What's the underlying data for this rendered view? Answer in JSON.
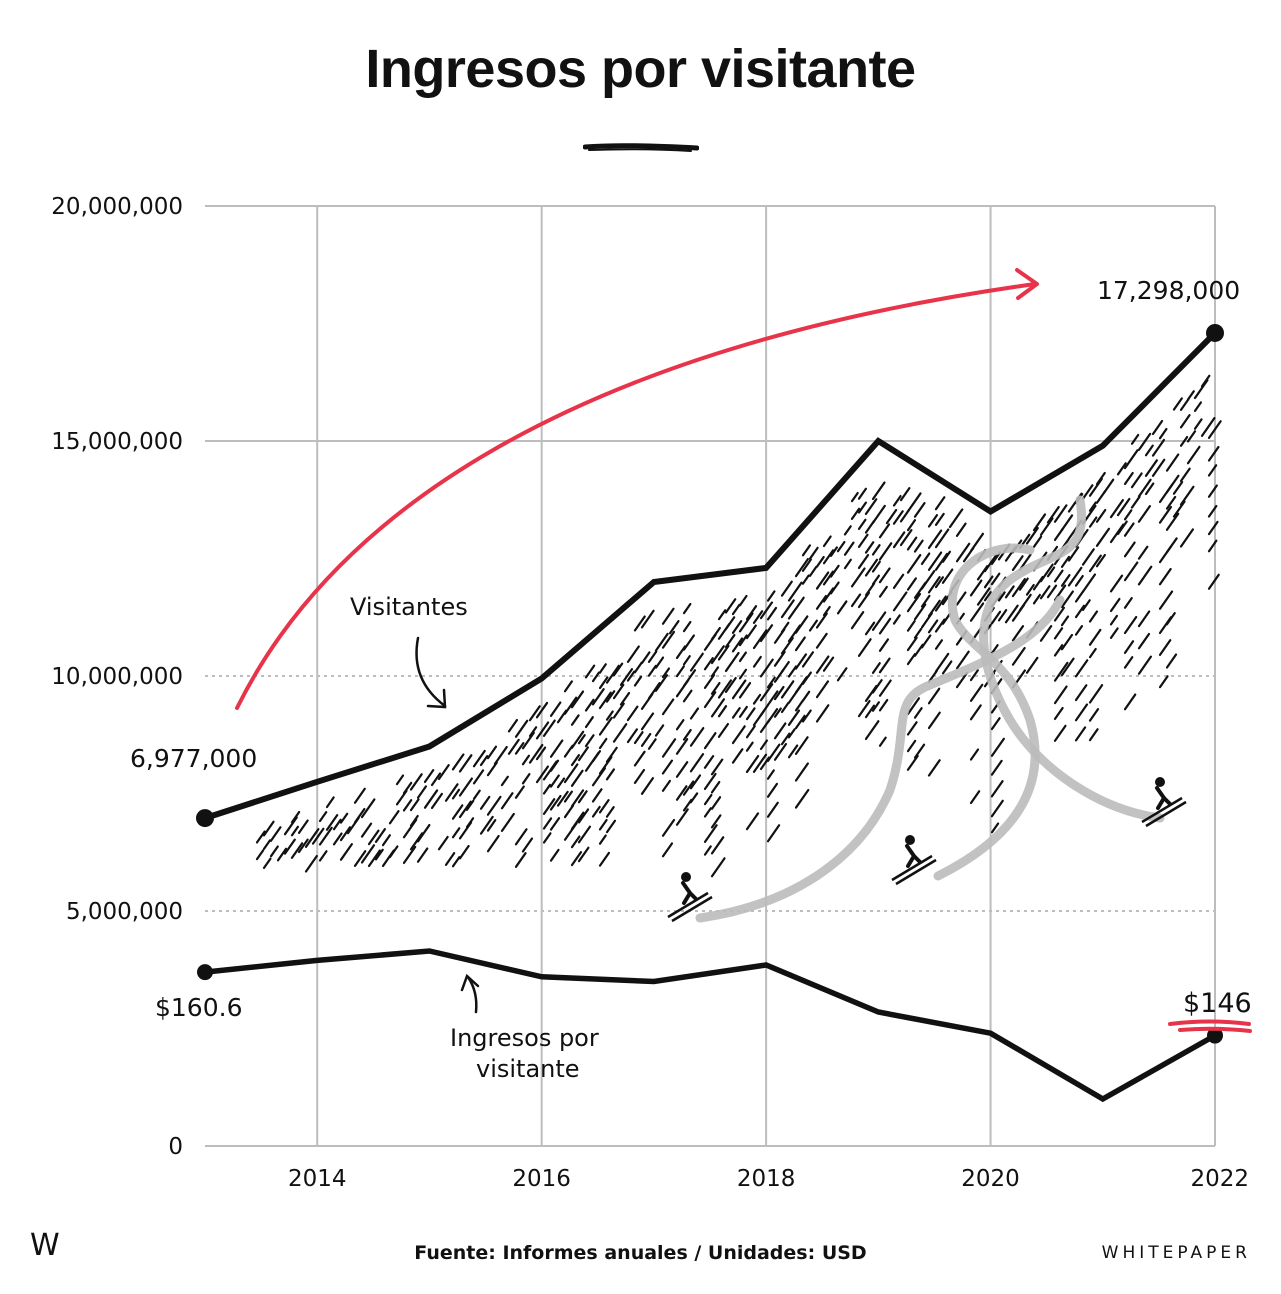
{
  "title": "Ingresos por visitante",
  "footer": {
    "logo": "W",
    "source": "Fuente: Informes anuales  /  Unidades: USD",
    "brand": "WHITEPAPER"
  },
  "colors": {
    "line": "#111111",
    "accent": "#e8344a",
    "grid": "#bdbdbd",
    "trail": "#bbbbbb"
  },
  "chart_data": {
    "type": "line",
    "title": "Ingresos por visitante",
    "x": [
      2013,
      2014,
      2015,
      2016,
      2017,
      2018,
      2019,
      2020,
      2021,
      2022
    ],
    "xticks": [
      2014,
      2016,
      2018,
      2020,
      2022
    ],
    "xtick_labels": [
      "2014",
      "2016",
      "2018",
      "2020",
      "2022"
    ],
    "ylim": [
      0,
      20000000
    ],
    "yticks": [
      0,
      5000000,
      10000000,
      15000000,
      20000000
    ],
    "ytick_labels": [
      "0",
      "5,000,000",
      "10,000,000",
      "15,000,000",
      "20,000,000"
    ],
    "grid": true,
    "series": [
      {
        "name": "Visitantes",
        "values": [
          6977000,
          7750000,
          8500000,
          9950000,
          12000000,
          12300000,
          15000000,
          13500000,
          14900000,
          17298000
        ]
      },
      {
        "name": "Ingresos por visitante",
        "label_lines": [
          "Ingresos por",
          "visitante"
        ],
        "values": [
          160.6,
          166,
          171,
          161,
          159,
          165,
          147,
          140,
          120,
          146
        ],
        "plotted_as": [
          3700000,
          3950000,
          4150000,
          3600000,
          3500000,
          3850000,
          2850000,
          2400000,
          1000000,
          2350000
        ]
      }
    ],
    "annotations": {
      "visitors_start": "6,977,000",
      "visitors_end": "17,298,000",
      "revenue_start": "$160.6",
      "revenue_end": "$146"
    }
  }
}
